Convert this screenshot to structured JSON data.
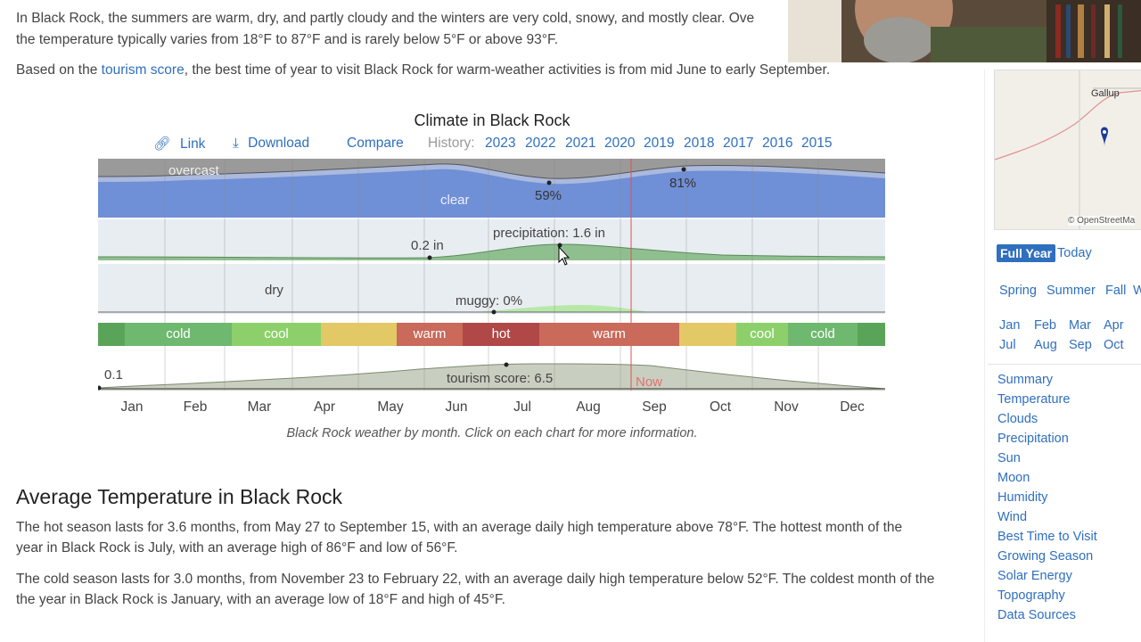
{
  "intro": {
    "line1": "In Black Rock, the summers are warm, dry, and partly cloudy and the winters are very cold, snowy, and mostly clear. Ove",
    "line2": "the temperature typically varies from 18°F to 87°F and is rarely below 5°F or above 93°F.",
    "line3_prefix": "Based on the ",
    "line3_link": "tourism score",
    "line3_suffix": ", the best time of year to visit Black Rock for warm-weather activities is from mid June to early September."
  },
  "chart": {
    "title": "Climate in Black Rock",
    "link_label": "Link",
    "download_label": "Download",
    "compare_label": "Compare",
    "history_label": "History:",
    "years": [
      "2023",
      "2022",
      "2021",
      "2020",
      "2019",
      "2018",
      "2017",
      "2016",
      "2015"
    ],
    "overcast_label": "overcast",
    "clear_label": "clear",
    "clear_min_label": "59%",
    "clear_max_label": "81%",
    "precip_low_label": "0.2 in",
    "precip_high_label": "precipitation: 1.6 in",
    "dry_label": "dry",
    "muggy_label": "muggy: 0%",
    "seasons": [
      {
        "label": "cold",
        "color": "#5aa45a"
      },
      {
        "label": "cool",
        "color": "#8dd06b"
      },
      {
        "label": "warm",
        "color": "#c96a5a"
      },
      {
        "label": "hot",
        "color": "#b04848"
      },
      {
        "label": "warm",
        "color": "#c96a5a"
      },
      {
        "label": "cool",
        "color": "#8dd06b"
      },
      {
        "label": "cold",
        "color": "#5aa45a"
      }
    ],
    "tourism_low_label": "0.1",
    "tourism_label": "tourism score: 6.5",
    "now_label": "Now",
    "months": [
      "Jan",
      "Feb",
      "Mar",
      "Apr",
      "May",
      "Jun",
      "Jul",
      "Aug",
      "Sep",
      "Oct",
      "Nov",
      "Dec"
    ],
    "caption": "Black Rock weather by month. Click on each chart for more information."
  },
  "temperature_section": {
    "heading": "Average Temperature in Black Rock",
    "p1_line1": "The hot season lasts for 3.6 months, from May 27 to September 15, with an average daily high temperature above 78°F. The hottest month of the",
    "p1_line2": "year in Black Rock is July, with an average high of 86°F and low of 56°F.",
    "p2_line1": "The cold season lasts for 3.0 months, from November 23 to February 22, with an average daily high temperature below 52°F. The coldest month of the",
    "p2_line2": "the year in Black Rock is January, with an average low of 18°F and high of 45°F."
  },
  "sidebar": {
    "map_city": "Gallup",
    "map_credit": "© OpenStreetMa",
    "full_year": "Full Year",
    "today": "Today",
    "seasons": [
      "Spring",
      "Summer",
      "Fall",
      "W"
    ],
    "months_row1": [
      "Jan",
      "Feb",
      "Mar",
      "Apr"
    ],
    "months_row2": [
      "Jul",
      "Aug",
      "Sep",
      "Oct"
    ],
    "nav": [
      "Summary",
      "Temperature",
      "Clouds",
      "Precipitation",
      "Sun",
      "Moon",
      "Humidity",
      "Wind",
      "Best Time to Visit",
      "Growing Season",
      "Solar Energy",
      "Topography",
      "Data Sources"
    ]
  }
}
